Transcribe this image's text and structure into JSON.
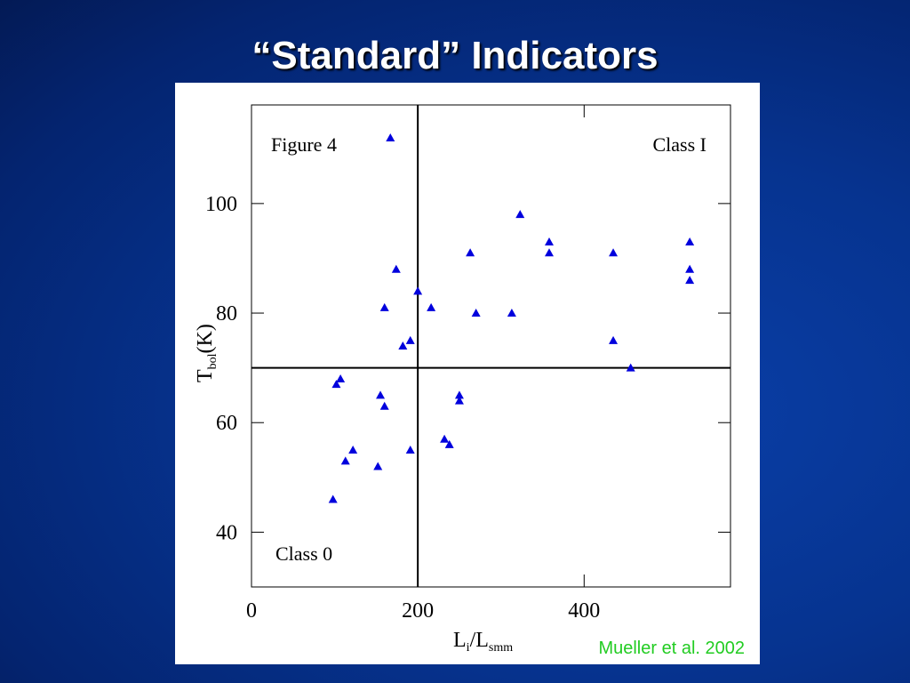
{
  "title": "“Standard” Indicators",
  "credit": "Mueller et al. 2002",
  "chart_data": {
    "type": "scatter",
    "annotations": [
      "Figure 4",
      "Class I",
      "Class 0"
    ],
    "xlabel": [
      "L",
      "i",
      "/L",
      "smm"
    ],
    "ylabel": [
      "T",
      "bol",
      "(K)"
    ],
    "xlim": [
      0,
      576
    ],
    "ylim": [
      30,
      118
    ],
    "xticks": [
      0,
      200,
      400
    ],
    "yticks": [
      40,
      60,
      80,
      100
    ],
    "vline": 200,
    "hline": 70,
    "color": "#0000dd",
    "x": [
      167,
      174,
      160,
      200,
      216,
      182,
      191,
      263,
      323,
      358,
      358,
      270,
      313,
      435,
      435,
      456,
      527,
      527,
      527,
      102,
      107,
      155,
      160,
      122,
      113,
      152,
      98,
      191,
      232,
      238,
      250,
      250
    ],
    "values": [
      112,
      88,
      81,
      84,
      81,
      74,
      75,
      91,
      98,
      93,
      91,
      80,
      80,
      91,
      75,
      70,
      93,
      88,
      86,
      67,
      68,
      65,
      63,
      55,
      53,
      52,
      46,
      55,
      57,
      56,
      65,
      64
    ]
  }
}
